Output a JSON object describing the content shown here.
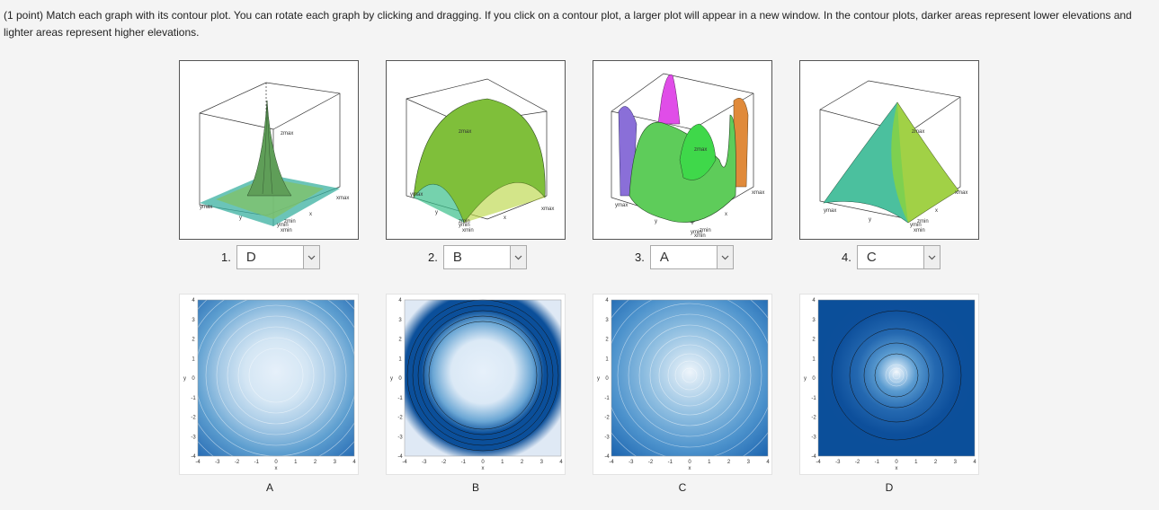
{
  "problem": {
    "text": "(1 point) Match each graph with its contour plot. You can rotate each graph by clicking and dragging. If you click on a contour plot, a larger plot will appear in a new window. In the contour plots, darker areas represent lower elevations and lighter areas represent higher elevations."
  },
  "graphs": [
    {
      "number": "1.",
      "answer": "D",
      "labels": {
        "zmax": "zmax",
        "xmax": "xmax",
        "ymax": "ymax",
        "y": "y",
        "x": "x",
        "zmin": "zmin",
        "ymin": "ymin",
        "xmin": "xmin"
      }
    },
    {
      "number": "2.",
      "answer": "B",
      "labels": {
        "zmax": "zmax",
        "xmax": "xmax",
        "ymax": "ymax",
        "y": "y",
        "x": "x",
        "zmin": "zmin",
        "ymin": "ymin",
        "xmin": "xmin"
      }
    },
    {
      "number": "3.",
      "answer": "A",
      "labels": {
        "zmax": "zmax",
        "xmax": "xmax",
        "ymax": "ymax",
        "y": "y",
        "x": "x",
        "zmin": "zmin",
        "ymin": "ymin",
        "xmin": "xmin"
      }
    },
    {
      "number": "4.",
      "answer": "C",
      "labels": {
        "zmax": "zmax",
        "xmax": "xmax",
        "ymax": "ymax",
        "y": "y",
        "x": "x",
        "zmin": "zmin",
        "ymin": "ymin",
        "xmin": "xmin"
      }
    }
  ],
  "contours": [
    {
      "label": "A"
    },
    {
      "label": "B"
    },
    {
      "label": "C"
    },
    {
      "label": "D"
    }
  ],
  "contour_axes": {
    "ticks": [
      "-4",
      "-3",
      "-2",
      "-1",
      "0",
      "1",
      "2",
      "3",
      "4"
    ],
    "x_label": "x",
    "y_label": "y"
  },
  "colors": {
    "contour_dark": "#0b4f9a",
    "contour_light": "#e8f1fa",
    "surface_green": "#6fd23a",
    "surface_cyan": "#2fb7c8",
    "surface_magenta": "#e04de8"
  }
}
